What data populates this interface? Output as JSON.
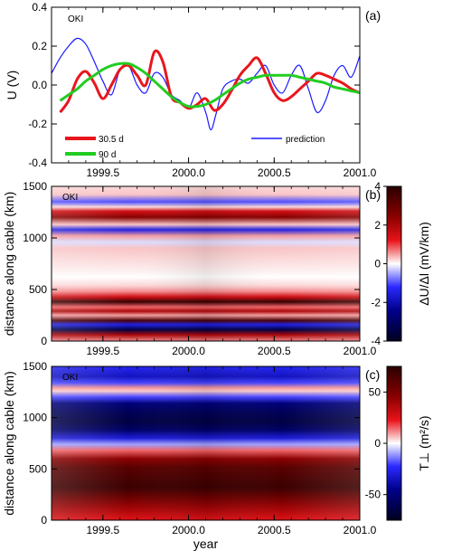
{
  "chart_data": [
    {
      "type": "line",
      "panel_label": "(a)",
      "ylabel": "U (V)",
      "site": "OKI",
      "xlim": [
        1999.2,
        2001.0
      ],
      "ylim": [
        -0.4,
        0.4
      ],
      "yticks": [
        "-0.4",
        "-0.2",
        "0.0",
        "0.2",
        "0.4"
      ],
      "xticks": [
        "1999.5",
        "2000.0",
        "2000.5",
        "2001.0"
      ],
      "xtick_values": [
        1999.5,
        2000.0,
        2000.5,
        2001.0
      ],
      "ytick_values": [
        -0.4,
        -0.2,
        0.0,
        0.2,
        0.4
      ],
      "series": [
        {
          "name": "prediction",
          "color": "#1a1aff",
          "x": [
            1999.2,
            1999.25,
            1999.3,
            1999.35,
            1999.4,
            1999.45,
            1999.5,
            1999.55,
            1999.6,
            1999.65,
            1999.7,
            1999.75,
            1999.8,
            1999.85,
            1999.9,
            1999.95,
            2000.0,
            2000.05,
            2000.1,
            2000.13,
            2000.16,
            2000.2,
            2000.25,
            2000.3,
            2000.35,
            2000.4,
            2000.45,
            2000.5,
            2000.55,
            2000.6,
            2000.65,
            2000.7,
            2000.75,
            2000.8,
            2000.85,
            2000.9,
            2000.95,
            2001.0
          ],
          "y": [
            0.06,
            0.14,
            0.2,
            0.24,
            0.21,
            0.12,
            0.02,
            -0.05,
            0.08,
            0.1,
            0.0,
            -0.04,
            0.06,
            0.04,
            -0.05,
            -0.08,
            -0.12,
            -0.04,
            -0.14,
            -0.23,
            -0.15,
            -0.02,
            0.02,
            0.03,
            0.01,
            0.06,
            0.1,
            0.0,
            -0.04,
            0.05,
            0.1,
            -0.02,
            -0.14,
            -0.08,
            0.05,
            0.1,
            0.04,
            0.15
          ]
        },
        {
          "name": "30.5 d",
          "color": "#e8161c",
          "x": [
            1999.25,
            1999.3,
            1999.35,
            1999.4,
            1999.45,
            1999.5,
            1999.55,
            1999.6,
            1999.65,
            1999.7,
            1999.75,
            1999.8,
            1999.85,
            1999.9,
            1999.95,
            2000.0,
            2000.05,
            2000.1,
            2000.15,
            2000.2,
            2000.25,
            2000.3,
            2000.35,
            2000.4,
            2000.45,
            2000.5,
            2000.55,
            2000.6,
            2000.65,
            2000.7,
            2000.75,
            2000.8,
            2000.85,
            2000.9,
            2000.95,
            2001.0
          ],
          "y": [
            -0.14,
            -0.08,
            0.03,
            0.07,
            0.01,
            -0.07,
            0.0,
            0.08,
            0.1,
            0.05,
            0.0,
            0.17,
            0.12,
            -0.06,
            -0.09,
            -0.12,
            -0.1,
            -0.07,
            -0.13,
            -0.1,
            -0.03,
            0.05,
            0.1,
            0.14,
            0.06,
            -0.04,
            -0.08,
            -0.06,
            -0.02,
            0.02,
            0.06,
            0.05,
            0.03,
            0.01,
            -0.02,
            -0.04
          ]
        },
        {
          "name": "90 d",
          "color": "#22cc22",
          "x": [
            1999.25,
            1999.3,
            1999.35,
            1999.4,
            1999.45,
            1999.5,
            1999.55,
            1999.6,
            1999.65,
            1999.7,
            1999.75,
            1999.8,
            1999.85,
            1999.9,
            1999.95,
            2000.0,
            2000.05,
            2000.1,
            2000.15,
            2000.2,
            2000.25,
            2000.3,
            2000.35,
            2000.4,
            2000.45,
            2000.5,
            2000.55,
            2000.6,
            2000.65,
            2000.7,
            2000.75,
            2000.8,
            2000.85,
            2000.9,
            2000.95,
            2001.0
          ],
          "y": [
            -0.08,
            -0.05,
            -0.02,
            0.02,
            0.05,
            0.08,
            0.1,
            0.11,
            0.11,
            0.09,
            0.06,
            0.02,
            -0.02,
            -0.06,
            -0.09,
            -0.11,
            -0.11,
            -0.1,
            -0.08,
            -0.05,
            -0.02,
            0.01,
            0.03,
            0.04,
            0.05,
            0.05,
            0.05,
            0.05,
            0.04,
            0.03,
            0.02,
            0.01,
            -0.01,
            -0.02,
            -0.03,
            -0.04
          ]
        }
      ]
    },
    {
      "type": "heatmap",
      "panel_label": "(b)",
      "site": "OKI",
      "ylabel": "distance along cable (km)",
      "colorbar_label": "ΔU/Δl (mV/km)",
      "colorbar_ticks": [
        "4",
        "2",
        "0",
        "-2",
        "-4"
      ],
      "colorbar_tick_values": [
        4,
        2,
        0,
        -2,
        -4
      ],
      "xlim": [
        1999.2,
        2001.0
      ],
      "ylim": [
        0,
        1500
      ],
      "yticks": [
        "0",
        "500",
        "1000",
        "1500"
      ],
      "ytick_values": [
        0,
        500,
        1000,
        1500
      ],
      "xticks": [
        "1999.5",
        "2000.0",
        "2000.5",
        "2001.0"
      ],
      "xtick_values": [
        1999.5,
        2000.0,
        2000.5,
        2001.0
      ],
      "bands_distance_km_value": [
        [
          0,
          0.6
        ],
        [
          60,
          2.0
        ],
        [
          110,
          -3.5
        ],
        [
          160,
          -1.5
        ],
        [
          200,
          3.5
        ],
        [
          250,
          0.5
        ],
        [
          290,
          2.0
        ],
        [
          330,
          0.8
        ],
        [
          380,
          3.8
        ],
        [
          430,
          1.5
        ],
        [
          480,
          0.6
        ],
        [
          540,
          0.2
        ],
        [
          620,
          0.0
        ],
        [
          700,
          0.1
        ],
        [
          800,
          0.2
        ],
        [
          900,
          0.3
        ],
        [
          960,
          -0.2
        ],
        [
          1020,
          0.5
        ],
        [
          1080,
          -1.5
        ],
        [
          1130,
          0.3
        ],
        [
          1200,
          2.5
        ],
        [
          1260,
          1.5
        ],
        [
          1300,
          0.2
        ],
        [
          1350,
          -1.0
        ],
        [
          1420,
          0.3
        ],
        [
          1500,
          0.2
        ]
      ]
    },
    {
      "type": "heatmap",
      "panel_label": "(c)",
      "site": "OKI",
      "xlabel": "year",
      "ylabel": "distance along cable (km)",
      "colorbar_label": "T⊥ (m²/s)",
      "colorbar_ticks": [
        "50",
        "0",
        "-50"
      ],
      "colorbar_tick_values": [
        50,
        0,
        -50
      ],
      "xlim": [
        1999.2,
        2001.0
      ],
      "ylim": [
        0,
        1500
      ],
      "yticks": [
        "0",
        "500",
        "1000",
        "1500"
      ],
      "ytick_values": [
        0,
        500,
        1000,
        1500
      ],
      "xticks": [
        "1999.5",
        "2000.0",
        "2000.5",
        "2001.0"
      ],
      "xtick_values": [
        1999.5,
        2000.0,
        2000.5,
        2001.0
      ],
      "bands_distance_km_value": [
        [
          0,
          25
        ],
        [
          120,
          40
        ],
        [
          220,
          55
        ],
        [
          320,
          70
        ],
        [
          420,
          65
        ],
        [
          520,
          60
        ],
        [
          600,
          45
        ],
        [
          680,
          15
        ],
        [
          740,
          -10
        ],
        [
          800,
          -30
        ],
        [
          880,
          -55
        ],
        [
          960,
          -65
        ],
        [
          1050,
          -60
        ],
        [
          1140,
          -50
        ],
        [
          1200,
          -20
        ],
        [
          1260,
          5
        ],
        [
          1290,
          10
        ],
        [
          1340,
          -20
        ],
        [
          1400,
          -35
        ],
        [
          1500,
          -25
        ]
      ]
    }
  ]
}
